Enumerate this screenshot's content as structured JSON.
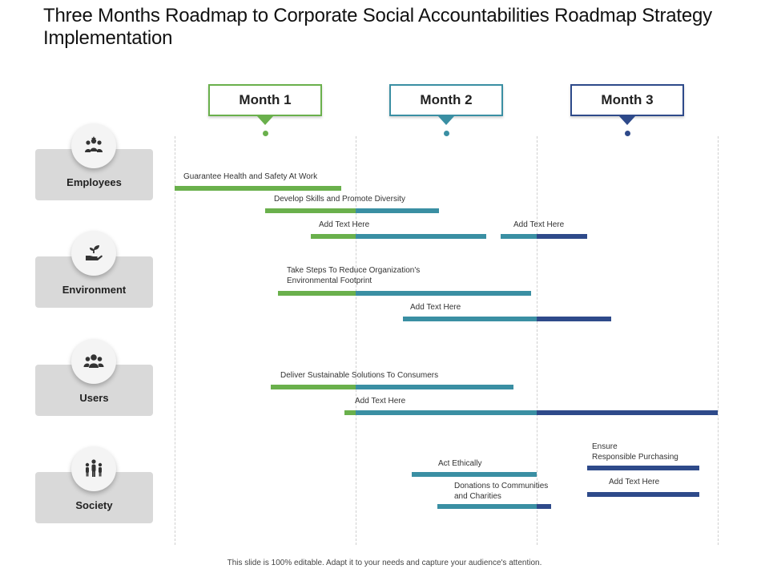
{
  "title": "Three Months Roadmap to Corporate Social Accountabilities Roadmap Strategy Implementation",
  "colors": {
    "month1": "#6ab04c",
    "month2": "#3a8fa3",
    "month3": "#2e4a8a",
    "category_bg": "#d9d9d9"
  },
  "months": [
    {
      "label": "Month 1"
    },
    {
      "label": "Month 2"
    },
    {
      "label": "Month 3"
    }
  ],
  "categories": [
    {
      "label": "Employees",
      "icon": "people-group-icon"
    },
    {
      "label": "Environment",
      "icon": "plant-in-hand-icon"
    },
    {
      "label": "Users",
      "icon": "users-icon"
    },
    {
      "label": "Society",
      "icon": "community-icon"
    }
  ],
  "tasks": [
    {
      "label": "Guarantee Health and Safety At Work",
      "start": 0.0,
      "end": 0.92
    },
    {
      "label": "Develop Skills and Promote Diversity",
      "start": 0.5,
      "end": 1.46
    },
    {
      "label": "Add Text Here",
      "start": 0.75,
      "end": 1.72
    },
    {
      "label": "Add Text Here",
      "start": 1.8,
      "end": 2.28
    },
    {
      "label": "Take Steps To Reduce Organization's\nEnvironmental Footprint",
      "start": 0.57,
      "end": 1.97
    },
    {
      "label": "Add Text Here",
      "start": 1.26,
      "end": 2.41
    },
    {
      "label": "Deliver Sustainable Solutions To Consumers",
      "start": 0.53,
      "end": 1.87
    },
    {
      "label": "Add Text Here",
      "start": 0.94,
      "end": 3.0
    },
    {
      "label": "Act Ethically",
      "start": 1.31,
      "end": 2.0
    },
    {
      "label": "Ensure\nResponsible Purchasing",
      "start": 2.28,
      "end": 2.9
    },
    {
      "label": "Donations to Communities\nand Charities",
      "start": 1.45,
      "end": 2.08
    },
    {
      "label": "Add Text Here",
      "start": 2.28,
      "end": 2.9
    }
  ],
  "footer": "This slide is 100% editable. Adapt it to your needs and capture your audience's attention."
}
